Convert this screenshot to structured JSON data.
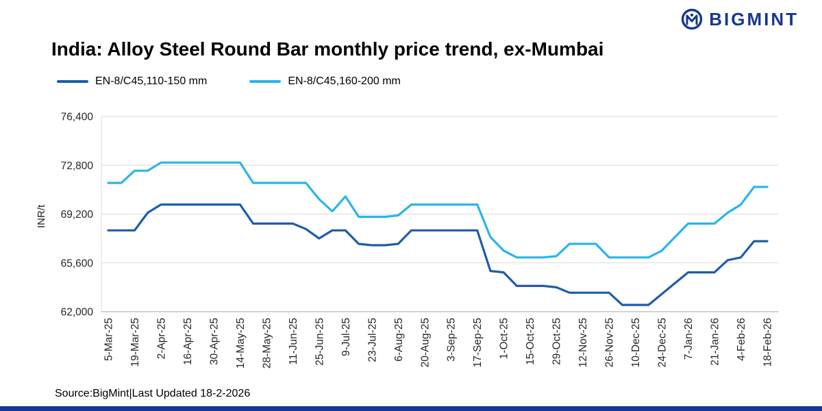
{
  "logo": {
    "text": "BIGMINT"
  },
  "colors": {
    "brand_navy": "#16388e",
    "dark_series": "#1f5ca9",
    "light_series": "#29b5e8",
    "gridline": "#d9d9d9",
    "axis": "#a6a6a6"
  },
  "title": "India: Alloy Steel Round Bar monthly price trend, ex-Mumbai",
  "legend": [
    {
      "label": "EN-8/C45,110-150 mm",
      "color": "#1f5ca9"
    },
    {
      "label": "EN-8/C45,160-200 mm",
      "color": "#29b5e8"
    }
  ],
  "source_note": "Source:BigMint|Last Updated 18-2-2026",
  "chart_data": {
    "type": "line",
    "title": "India: Alloy Steel Round Bar monthly price trend, ex-Mumbai",
    "xlabel": "",
    "ylabel": "INR/t",
    "ylim": [
      62000,
      76400
    ],
    "yticks": [
      62000,
      65600,
      69200,
      72800,
      76400
    ],
    "ytick_labels": [
      "62,000",
      "65,600",
      "69,200",
      "72,800",
      "76,400"
    ],
    "grid": "horizontal",
    "legend_position": "top-left",
    "points_per_label": 2,
    "x_labels": [
      "5-Mar-25",
      "19-Mar-25",
      "2-Apr-25",
      "16-Apr-25",
      "30-Apr-25",
      "14-May-25",
      "28-May-25",
      "11-Jun-25",
      "25-Jun-25",
      "9-Jul-25",
      "23-Jul-25",
      "6-Aug-25",
      "20-Aug-25",
      "3-Sep-25",
      "17-Sep-25",
      "1-Oct-25",
      "15-Oct-25",
      "29-Oct-25",
      "12-Nov-25",
      "26-Nov-25",
      "10-Dec-25",
      "24-Dec-25",
      "7-Jan-26",
      "21-Jan-26",
      "4-Feb-26",
      "18-Feb-26"
    ],
    "series": [
      {
        "name": "EN-8/C45,110-150 mm",
        "color": "#1f5ca9",
        "values": [
          68000,
          68000,
          68000,
          69300,
          69900,
          69900,
          69900,
          69900,
          69900,
          69900,
          69900,
          68500,
          68500,
          68500,
          68500,
          68100,
          67400,
          68000,
          68000,
          67000,
          66900,
          66900,
          67000,
          68000,
          68000,
          68000,
          68000,
          68000,
          68000,
          65000,
          64900,
          63900,
          63900,
          63900,
          63800,
          63400,
          63400,
          63400,
          63400,
          62500,
          62500,
          62500,
          63300,
          64100,
          64900,
          64900,
          64900,
          65800,
          66000,
          67200,
          67200
        ]
      },
      {
        "name": "EN-8/C45,160-200 mm",
        "color": "#29b5e8",
        "values": [
          71500,
          71500,
          72400,
          72400,
          73000,
          73000,
          73000,
          73000,
          73000,
          73000,
          73000,
          71500,
          71500,
          71500,
          71500,
          71500,
          70300,
          69400,
          70500,
          69000,
          69000,
          69000,
          69100,
          69900,
          69900,
          69900,
          69900,
          69900,
          69900,
          67500,
          66500,
          66000,
          66000,
          66000,
          66100,
          67000,
          67000,
          67000,
          66000,
          66000,
          66000,
          66000,
          66500,
          67500,
          68500,
          68500,
          68500,
          69300,
          69900,
          71200,
          71200
        ]
      }
    ]
  }
}
